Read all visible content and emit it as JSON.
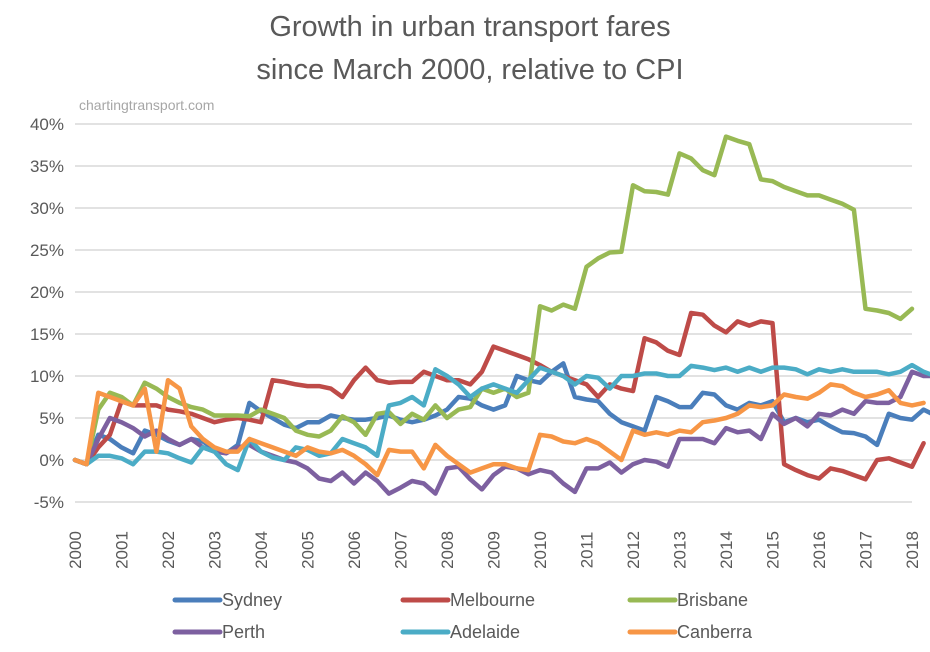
{
  "chart_data": {
    "type": "line",
    "title": "Growth in urban transport fares",
    "subtitle": "since March 2000, relative to CPI",
    "source_note": "chartingtransport.com",
    "xlabel": "",
    "ylabel": "",
    "x_start": 2000,
    "x_end": 2018,
    "points_per_year": 4,
    "x_ticks": [
      "2000",
      "2001",
      "2002",
      "2003",
      "2004",
      "2005",
      "2006",
      "2007",
      "2008",
      "2009",
      "2010",
      "2011",
      "2012",
      "2013",
      "2014",
      "2015",
      "2016",
      "2017",
      "2018"
    ],
    "ylim": [
      -5,
      40
    ],
    "y_ticks": [
      40,
      35,
      30,
      25,
      20,
      15,
      10,
      5,
      0,
      -5
    ],
    "y_tick_labels": [
      "40%",
      "35%",
      "30%",
      "25%",
      "20%",
      "15%",
      "10%",
      "5%",
      "0%",
      "-5%"
    ],
    "grid": true,
    "legend_position": "bottom",
    "series": [
      {
        "name": "Sydney",
        "color": "#4a7ebb",
        "values": [
          0,
          -0.5,
          3,
          2.5,
          1.5,
          0.8,
          3.5,
          3,
          2.3,
          1.8,
          2.5,
          2.2,
          1.3,
          0.8,
          1.8,
          6.8,
          5.8,
          5,
          4.2,
          3.8,
          4.5,
          4.5,
          5.3,
          5,
          4.8,
          4.8,
          5,
          5.3,
          4.8,
          4.5,
          4.8,
          5.3,
          6,
          7.5,
          7.3,
          6.5,
          6,
          6.5,
          10,
          9.5,
          9.2,
          10.5,
          11.5,
          7.5,
          7.2,
          7,
          5.5,
          4.5,
          4,
          3.5,
          7.5,
          7,
          6.3,
          6.3,
          8,
          7.8,
          6.5,
          6,
          6.8,
          6.5,
          7,
          4.5,
          5,
          4.5,
          4.8,
          4,
          3.3,
          3.2,
          2.8,
          1.8,
          5.5,
          5,
          4.8,
          6,
          5.3,
          6
        ]
      },
      {
        "name": "Melbourne",
        "color": "#be4b48",
        "values": [
          0,
          -0.5,
          1.5,
          3,
          7,
          6.5,
          6.5,
          6.5,
          6,
          5.8,
          5.5,
          5,
          4.5,
          4.8,
          5,
          4.8,
          4.5,
          9.5,
          9.3,
          9,
          8.8,
          8.8,
          8.5,
          7.5,
          9.5,
          11,
          9.5,
          9.2,
          9.3,
          9.3,
          10.5,
          10,
          9.5,
          9.5,
          9,
          10.5,
          13.5,
          13,
          12.5,
          12,
          11.3,
          10.5,
          10,
          9.5,
          9,
          7.5,
          9,
          8.5,
          8.2,
          14.5,
          14,
          13,
          12.5,
          17.5,
          17.3,
          16,
          15.2,
          16.5,
          16,
          16.5,
          16.3,
          -0.5,
          -1.2,
          -1.8,
          -2.2,
          -1,
          -1.3,
          -1.8,
          -2.3,
          0,
          0.2,
          -0.3,
          -0.8,
          2
        ]
      },
      {
        "name": "Brisbane",
        "color": "#98b954",
        "values": [
          0,
          -0.5,
          6,
          8,
          7.5,
          6.5,
          9.2,
          8.5,
          7.5,
          6.8,
          6.3,
          6,
          5.3,
          5.3,
          5.3,
          5.2,
          6,
          5.5,
          5,
          3.5,
          3,
          2.8,
          3.5,
          5.2,
          4.5,
          3,
          5.5,
          5.7,
          4.3,
          5.5,
          4.8,
          6.5,
          5,
          6,
          6.3,
          8.5,
          8,
          8.5,
          7.5,
          8,
          18.3,
          17.8,
          18.5,
          18,
          23,
          24,
          24.7,
          24.8,
          32.7,
          32,
          31.9,
          31.6,
          36.5,
          35.9,
          34.5,
          33.9,
          38.5,
          38,
          37.6,
          33.4,
          33.2,
          32.5,
          32,
          31.5,
          31.5,
          31,
          30.5,
          29.8,
          18,
          17.8,
          17.5,
          16.8,
          18
        ]
      },
      {
        "name": "Perth",
        "color": "#7d60a0",
        "values": [
          0,
          -0.5,
          2.5,
          5,
          4.5,
          3.8,
          2.8,
          3.5,
          2.5,
          1.8,
          2.5,
          1.5,
          1,
          0.8,
          1.5,
          1.8,
          1,
          0.5,
          0,
          -0.3,
          -1,
          -2.2,
          -2.5,
          -1.5,
          -2.8,
          -1.5,
          -2.5,
          -4,
          -3.3,
          -2.5,
          -2.8,
          -4,
          -1,
          -0.8,
          -2.3,
          -3.5,
          -1.8,
          -0.8,
          -1,
          -1.7,
          -1.2,
          -1.5,
          -2.8,
          -3.8,
          -1,
          -1,
          -0.3,
          -1.5,
          -0.5,
          0,
          -0.2,
          -0.8,
          2.5,
          2.5,
          2.5,
          2,
          3.8,
          3.3,
          3.5,
          2.5,
          5.5,
          4.3,
          5,
          4,
          5.5,
          5.3,
          6,
          5.5,
          7,
          6.8,
          6.8,
          7.5,
          10.5,
          10,
          10
        ]
      },
      {
        "name": "Adelaide",
        "color": "#4bacc6",
        "values": [
          0,
          -0.5,
          0.5,
          0.5,
          0.2,
          -0.5,
          1,
          1,
          0.8,
          0.2,
          -0.3,
          1.5,
          1,
          -0.5,
          -1.2,
          2.5,
          1,
          0.3,
          0,
          1.5,
          1.2,
          0.5,
          0.8,
          2.5,
          2,
          1.5,
          0.5,
          6.5,
          6.8,
          7.5,
          6.5,
          10.8,
          10,
          9,
          7.5,
          8.5,
          9,
          8.5,
          8,
          9.5,
          11,
          10.5,
          10,
          9,
          10,
          9.8,
          8.5,
          10,
          10,
          10.3,
          10.3,
          10,
          10,
          11.2,
          11,
          10.7,
          11,
          10.5,
          11,
          10.5,
          11,
          11,
          10.8,
          10.2,
          10.8,
          10.5,
          10.8,
          10.5,
          10.5,
          10.5,
          10.2,
          10.5,
          11.3,
          10.5,
          10
        ]
      },
      {
        "name": "Canberra",
        "color": "#f79646",
        "values": [
          0,
          -0.5,
          8,
          7.5,
          7,
          6.5,
          8.5,
          1,
          9.5,
          8.5,
          4,
          2.5,
          1.5,
          1,
          1,
          2.5,
          2,
          1.5,
          1,
          0.5,
          1.5,
          1,
          0.8,
          1.2,
          0.5,
          -0.5,
          -1.8,
          1.2,
          1,
          1,
          -1,
          1.8,
          0.5,
          -0.5,
          -1.5,
          -1,
          -0.5,
          -0.5,
          -1,
          -1.2,
          3,
          2.8,
          2.2,
          2,
          2.5,
          2,
          1,
          0,
          3.5,
          3,
          3.3,
          3,
          3.5,
          3.3,
          4.5,
          4.7,
          5,
          5.5,
          6.5,
          6.3,
          6.5,
          7.8,
          7.5,
          7.3,
          8,
          9,
          8.8,
          8,
          7.5,
          7.8,
          8.3,
          6.8,
          6.5,
          6.8
        ]
      }
    ]
  }
}
